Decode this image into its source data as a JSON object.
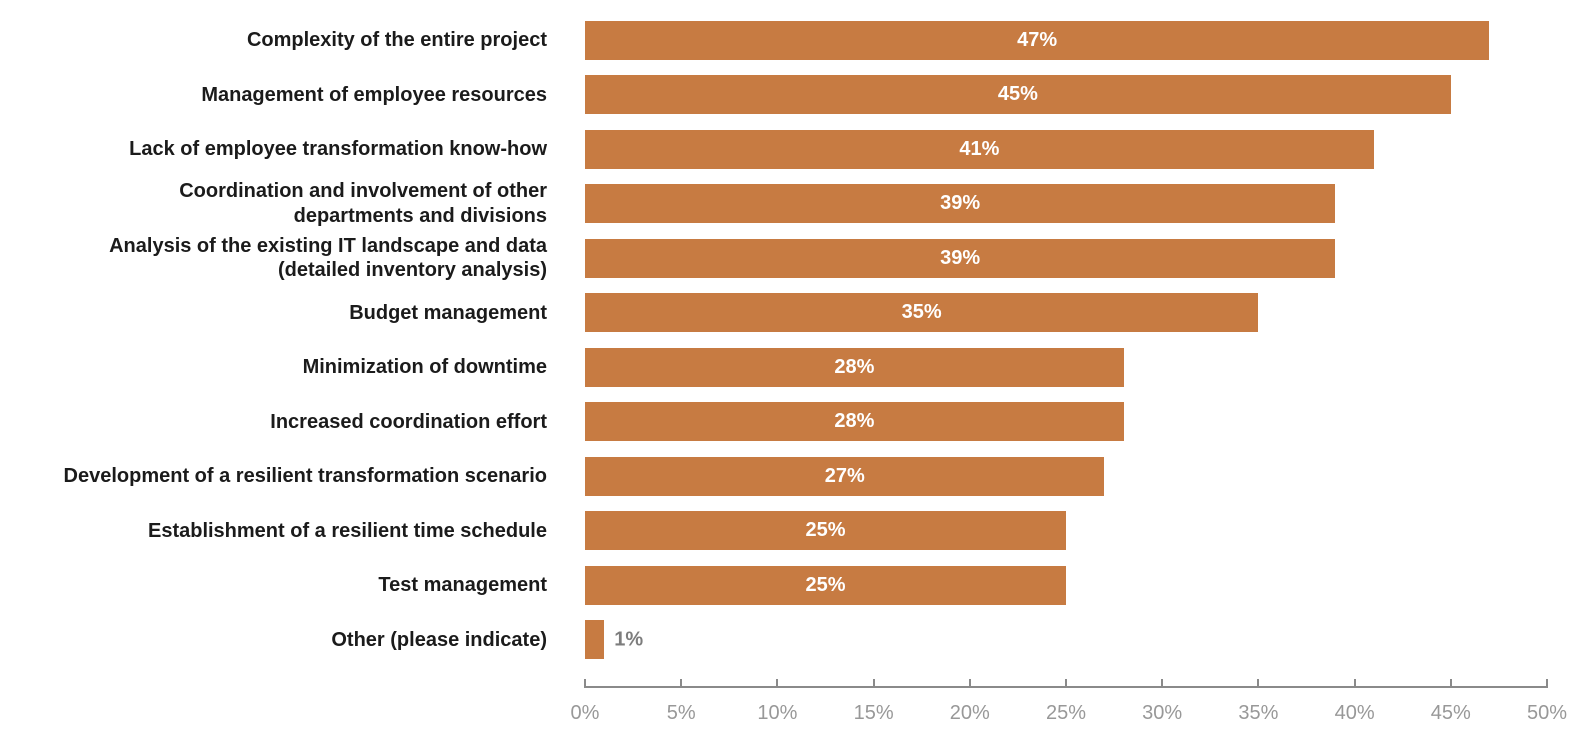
{
  "chart_data": {
    "type": "bar",
    "orientation": "horizontal",
    "title": "",
    "xlabel": "",
    "ylabel": "",
    "xlim": [
      0,
      50
    ],
    "grid": false,
    "legend": null,
    "x_tick_values": [
      0,
      5,
      10,
      15,
      20,
      25,
      30,
      35,
      40,
      45,
      50
    ],
    "x_tick_labels": [
      "0%",
      "5%",
      "10%",
      "15%",
      "20%",
      "25%",
      "30%",
      "35%",
      "40%",
      "45%",
      "50%"
    ],
    "categories": [
      "Complexity of the entire project",
      "Management of employee resources",
      "Lack of employee transformation know-how",
      "Coordination and involvement of other departments and divisions",
      "Analysis of the existing IT landscape and data (detailed inventory analysis)",
      "Budget management",
      "Minimization of downtime",
      "Increased coordination effort",
      "Development of a resilient transformation scenario",
      "Establishment of a resilient time schedule",
      "Test management",
      "Other (please indicate)"
    ],
    "values": [
      47,
      45,
      41,
      39,
      39,
      35,
      28,
      28,
      27,
      25,
      25,
      1
    ],
    "bars": [
      {
        "label": "Complexity of the entire project",
        "label_lines": [
          "Complexity of the entire project"
        ],
        "value": 47,
        "value_label": "47%",
        "value_label_position": "inside"
      },
      {
        "label": "Management of employee resources",
        "label_lines": [
          "Management of employee resources"
        ],
        "value": 45,
        "value_label": "45%",
        "value_label_position": "inside"
      },
      {
        "label": "Lack of employee transformation know-how",
        "label_lines": [
          "Lack of employee transformation know-how"
        ],
        "value": 41,
        "value_label": "41%",
        "value_label_position": "inside"
      },
      {
        "label": "Coordination and involvement of other departments and divisions",
        "label_lines": [
          "Coordination and involvement of other",
          "departments and divisions"
        ],
        "value": 39,
        "value_label": "39%",
        "value_label_position": "inside"
      },
      {
        "label": "Analysis of the existing IT landscape and data (detailed inventory analysis)",
        "label_lines": [
          "Analysis of the existing IT landscape and data",
          "(detailed inventory analysis)"
        ],
        "value": 39,
        "value_label": "39%",
        "value_label_position": "inside"
      },
      {
        "label": "Budget management",
        "label_lines": [
          "Budget management"
        ],
        "value": 35,
        "value_label": "35%",
        "value_label_position": "inside"
      },
      {
        "label": "Minimization of downtime",
        "label_lines": [
          "Minimization of downtime"
        ],
        "value": 28,
        "value_label": "28%",
        "value_label_position": "inside"
      },
      {
        "label": "Increased coordination effort",
        "label_lines": [
          "Increased coordination effort"
        ],
        "value": 28,
        "value_label": "28%",
        "value_label_position": "inside"
      },
      {
        "label": "Development of a resilient transformation scenario",
        "label_lines": [
          "Development of a resilient transformation scenario"
        ],
        "value": 27,
        "value_label": "27%",
        "value_label_position": "inside"
      },
      {
        "label": "Establishment of a resilient time schedule",
        "label_lines": [
          "Establishment of a resilient time schedule"
        ],
        "value": 25,
        "value_label": "25%",
        "value_label_position": "inside"
      },
      {
        "label": "Test management",
        "label_lines": [
          "Test management"
        ],
        "value": 25,
        "value_label": "25%",
        "value_label_position": "inside"
      },
      {
        "label": "Other (please indicate)",
        "label_lines": [
          "Other (please indicate)"
        ],
        "value": 1,
        "value_label": "1%",
        "value_label_position": "outside"
      }
    ],
    "colors": {
      "bar": "#c77b42",
      "value_label_inside": "#ffffff",
      "value_label_outside": "#7d7d7d",
      "category_label": "#1b1b1b",
      "axis_line": "#8a8a8a",
      "axis_tick": "#8a8a8a",
      "axis_label": "#989898",
      "background": "#ffffff"
    }
  }
}
